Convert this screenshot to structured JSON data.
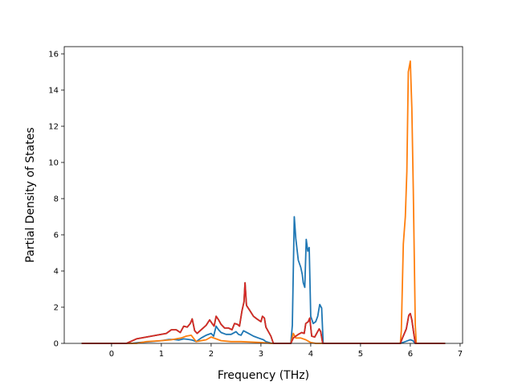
{
  "chart_data": {
    "type": "line",
    "title": "",
    "xlabel": "Frequency (THz)",
    "ylabel": "Partial Density of States",
    "xlim": [
      -0.95,
      7.05
    ],
    "ylim": [
      0,
      16.4
    ],
    "x_ticks": [
      0,
      1,
      2,
      3,
      4,
      5,
      6,
      7
    ],
    "y_ticks": [
      0,
      2,
      4,
      6,
      8,
      10,
      12,
      14,
      16
    ],
    "x_tick_labels": [
      "0",
      "1",
      "2",
      "3",
      "4",
      "5",
      "6",
      "7"
    ],
    "y_tick_labels": [
      "0",
      "2",
      "4",
      "6",
      "8",
      "10",
      "12",
      "14",
      "16"
    ],
    "grid": false,
    "legend": false,
    "series": [
      {
        "color": "#1f77b4",
        "points": [
          [
            -0.6,
            0
          ],
          [
            0.4,
            0
          ],
          [
            0.55,
            0.05
          ],
          [
            0.8,
            0.1
          ],
          [
            1.0,
            0.15
          ],
          [
            1.15,
            0.22
          ],
          [
            1.25,
            0.22
          ],
          [
            1.35,
            0.18
          ],
          [
            1.45,
            0.25
          ],
          [
            1.55,
            0.22
          ],
          [
            1.62,
            0.18
          ],
          [
            1.7,
            0.1
          ],
          [
            1.8,
            0.3
          ],
          [
            1.9,
            0.45
          ],
          [
            2.0,
            0.55
          ],
          [
            2.05,
            0.4
          ],
          [
            2.1,
            0.95
          ],
          [
            2.15,
            0.75
          ],
          [
            2.2,
            0.6
          ],
          [
            2.3,
            0.5
          ],
          [
            2.4,
            0.5
          ],
          [
            2.5,
            0.65
          ],
          [
            2.55,
            0.5
          ],
          [
            2.6,
            0.45
          ],
          [
            2.65,
            0.7
          ],
          [
            2.75,
            0.55
          ],
          [
            2.85,
            0.4
          ],
          [
            2.95,
            0.3
          ],
          [
            3.05,
            0.2
          ],
          [
            3.1,
            0.1
          ],
          [
            3.2,
            0.02
          ],
          [
            3.3,
            0
          ],
          [
            3.6,
            0
          ],
          [
            3.63,
            1.0
          ],
          [
            3.67,
            7.0
          ],
          [
            3.7,
            5.8
          ],
          [
            3.75,
            4.6
          ],
          [
            3.8,
            4.2
          ],
          [
            3.83,
            3.8
          ],
          [
            3.85,
            3.35
          ],
          [
            3.88,
            3.1
          ],
          [
            3.91,
            5.75
          ],
          [
            3.94,
            5.1
          ],
          [
            3.97,
            5.3
          ],
          [
            4.0,
            1.5
          ],
          [
            4.05,
            1.1
          ],
          [
            4.1,
            1.2
          ],
          [
            4.14,
            1.5
          ],
          [
            4.18,
            2.15
          ],
          [
            4.22,
            1.95
          ],
          [
            4.25,
            0
          ],
          [
            5.8,
            0
          ],
          [
            5.9,
            0.1
          ],
          [
            6.0,
            0.2
          ],
          [
            6.05,
            0.15
          ],
          [
            6.1,
            0
          ],
          [
            6.7,
            0
          ]
        ]
      },
      {
        "color": "#ff7f0e",
        "points": [
          [
            -0.6,
            0
          ],
          [
            0.5,
            0
          ],
          [
            0.7,
            0.1
          ],
          [
            1.0,
            0.15
          ],
          [
            1.2,
            0.2
          ],
          [
            1.4,
            0.3
          ],
          [
            1.5,
            0.4
          ],
          [
            1.6,
            0.45
          ],
          [
            1.7,
            0.1
          ],
          [
            1.9,
            0.2
          ],
          [
            2.0,
            0.35
          ],
          [
            2.1,
            0.25
          ],
          [
            2.2,
            0.15
          ],
          [
            2.4,
            0.1
          ],
          [
            2.6,
            0.1
          ],
          [
            3.0,
            0.05
          ],
          [
            3.2,
            0
          ],
          [
            3.6,
            0
          ],
          [
            3.65,
            0.55
          ],
          [
            3.7,
            0.3
          ],
          [
            3.8,
            0.3
          ],
          [
            3.9,
            0.2
          ],
          [
            4.0,
            0.05
          ],
          [
            4.1,
            0
          ],
          [
            5.8,
            0
          ],
          [
            5.82,
            0.7
          ],
          [
            5.86,
            5.5
          ],
          [
            5.9,
            7.0
          ],
          [
            5.93,
            9.5
          ],
          [
            5.96,
            15.0
          ],
          [
            6.0,
            15.6
          ],
          [
            6.03,
            13.0
          ],
          [
            6.06,
            8.5
          ],
          [
            6.1,
            1.0
          ],
          [
            6.12,
            0
          ],
          [
            6.7,
            0
          ]
        ]
      },
      {
        "color": "#2ca02c",
        "points": [
          [
            -0.6,
            0
          ],
          [
            0.3,
            0
          ],
          [
            0.5,
            0.25
          ],
          [
            0.7,
            0.35
          ],
          [
            0.9,
            0.45
          ],
          [
            1.1,
            0.55
          ],
          [
            1.2,
            0.75
          ],
          [
            1.3,
            0.75
          ],
          [
            1.38,
            0.6
          ],
          [
            1.45,
            0.95
          ],
          [
            1.52,
            0.9
          ],
          [
            1.58,
            1.1
          ],
          [
            1.62,
            1.35
          ],
          [
            1.67,
            0.7
          ],
          [
            1.72,
            0.55
          ],
          [
            1.8,
            0.75
          ],
          [
            1.9,
            1.0
          ],
          [
            1.97,
            1.3
          ],
          [
            2.02,
            1.1
          ],
          [
            2.06,
            0.95
          ],
          [
            2.1,
            1.5
          ],
          [
            2.15,
            1.3
          ],
          [
            2.2,
            1.05
          ],
          [
            2.27,
            0.85
          ],
          [
            2.35,
            0.85
          ],
          [
            2.42,
            0.75
          ],
          [
            2.47,
            1.1
          ],
          [
            2.53,
            1.05
          ],
          [
            2.57,
            0.95
          ],
          [
            2.62,
            1.8
          ],
          [
            2.66,
            2.3
          ],
          [
            2.68,
            3.35
          ],
          [
            2.71,
            2.1
          ],
          [
            2.78,
            1.8
          ],
          [
            2.85,
            1.5
          ],
          [
            2.92,
            1.35
          ],
          [
            3.0,
            1.2
          ],
          [
            3.03,
            1.5
          ],
          [
            3.07,
            1.4
          ],
          [
            3.1,
            0.9
          ],
          [
            3.2,
            0.4
          ],
          [
            3.25,
            0
          ],
          [
            3.6,
            0
          ],
          [
            3.65,
            0.3
          ],
          [
            3.75,
            0.5
          ],
          [
            3.82,
            0.6
          ],
          [
            3.87,
            0.55
          ],
          [
            3.9,
            1.1
          ],
          [
            3.95,
            1.2
          ],
          [
            3.98,
            1.4
          ],
          [
            4.02,
            0.4
          ],
          [
            4.08,
            0.35
          ],
          [
            4.12,
            0.55
          ],
          [
            4.17,
            0.8
          ],
          [
            4.2,
            0.65
          ],
          [
            4.24,
            0
          ],
          [
            5.8,
            0
          ],
          [
            5.85,
            0.35
          ],
          [
            5.92,
            0.8
          ],
          [
            5.97,
            1.55
          ],
          [
            6.0,
            1.65
          ],
          [
            6.03,
            1.3
          ],
          [
            6.07,
            0.55
          ],
          [
            6.1,
            0
          ],
          [
            6.7,
            0
          ]
        ]
      },
      {
        "color": "#d62728",
        "points": [
          [
            -0.6,
            0
          ],
          [
            0.3,
            0
          ],
          [
            0.5,
            0.25
          ],
          [
            0.7,
            0.35
          ],
          [
            0.9,
            0.45
          ],
          [
            1.1,
            0.55
          ],
          [
            1.2,
            0.75
          ],
          [
            1.3,
            0.75
          ],
          [
            1.38,
            0.6
          ],
          [
            1.45,
            0.95
          ],
          [
            1.52,
            0.9
          ],
          [
            1.58,
            1.1
          ],
          [
            1.62,
            1.35
          ],
          [
            1.67,
            0.7
          ],
          [
            1.72,
            0.55
          ],
          [
            1.8,
            0.75
          ],
          [
            1.9,
            1.0
          ],
          [
            1.97,
            1.3
          ],
          [
            2.02,
            1.1
          ],
          [
            2.06,
            0.95
          ],
          [
            2.1,
            1.5
          ],
          [
            2.15,
            1.3
          ],
          [
            2.2,
            1.05
          ],
          [
            2.27,
            0.85
          ],
          [
            2.35,
            0.85
          ],
          [
            2.42,
            0.75
          ],
          [
            2.47,
            1.1
          ],
          [
            2.53,
            1.05
          ],
          [
            2.57,
            0.95
          ],
          [
            2.62,
            1.8
          ],
          [
            2.66,
            2.3
          ],
          [
            2.68,
            3.35
          ],
          [
            2.71,
            2.1
          ],
          [
            2.78,
            1.8
          ],
          [
            2.85,
            1.5
          ],
          [
            2.92,
            1.35
          ],
          [
            3.0,
            1.2
          ],
          [
            3.03,
            1.5
          ],
          [
            3.07,
            1.4
          ],
          [
            3.1,
            0.9
          ],
          [
            3.2,
            0.4
          ],
          [
            3.25,
            0
          ],
          [
            3.6,
            0
          ],
          [
            3.65,
            0.3
          ],
          [
            3.75,
            0.5
          ],
          [
            3.82,
            0.6
          ],
          [
            3.87,
            0.55
          ],
          [
            3.9,
            1.1
          ],
          [
            3.95,
            1.2
          ],
          [
            3.98,
            1.4
          ],
          [
            4.02,
            0.4
          ],
          [
            4.08,
            0.35
          ],
          [
            4.12,
            0.55
          ],
          [
            4.17,
            0.8
          ],
          [
            4.2,
            0.65
          ],
          [
            4.24,
            0
          ],
          [
            5.8,
            0
          ],
          [
            5.85,
            0.35
          ],
          [
            5.92,
            0.8
          ],
          [
            5.97,
            1.55
          ],
          [
            6.0,
            1.65
          ],
          [
            6.03,
            1.3
          ],
          [
            6.07,
            0.55
          ],
          [
            6.1,
            0
          ],
          [
            6.7,
            0
          ]
        ]
      }
    ]
  }
}
